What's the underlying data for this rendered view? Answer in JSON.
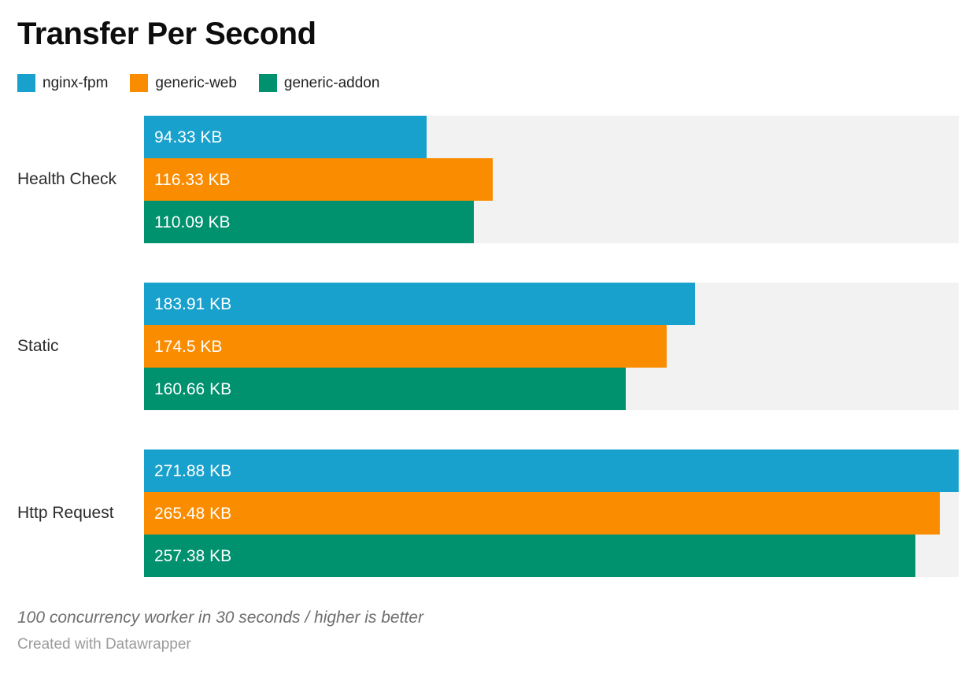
{
  "title": "Transfer Per Second",
  "legend": {
    "items": [
      {
        "label": "nginx-fpm",
        "color": "#18a1cd"
      },
      {
        "label": "generic-web",
        "color": "#fa8c00"
      },
      {
        "label": "generic-addon",
        "color": "#00916f"
      }
    ]
  },
  "chart_data": {
    "type": "bar",
    "orientation": "horizontal",
    "title": "Transfer Per Second",
    "unit": "KB",
    "categories": [
      "Health Check",
      "Static",
      "Http Request"
    ],
    "series": [
      {
        "name": "nginx-fpm",
        "color": "#18a1cd",
        "values": [
          94.33,
          183.91,
          271.88
        ],
        "display_labels": [
          "94.33 KB",
          "183.91 KB",
          "271.88 KB"
        ]
      },
      {
        "name": "generic-web",
        "color": "#fa8c00",
        "values": [
          116.33,
          174.5,
          265.48
        ],
        "display_labels": [
          "116.33 KB",
          "174.5 KB",
          "265.48 KB"
        ]
      },
      {
        "name": "generic-addon",
        "color": "#00916f",
        "values": [
          110.09,
          160.66,
          257.38
        ],
        "display_labels": [
          "110.09 KB",
          "160.66 KB",
          "257.38 KB"
        ]
      }
    ],
    "xmax": 271.88,
    "track_color": "#f2f2f2",
    "value_label_color": "#ffffff",
    "legend_position": "top",
    "grid": false,
    "xlabel": "",
    "ylabel": ""
  },
  "footer": {
    "note": "100 concurrency worker in 30 seconds / higher is better",
    "attribution": "Created with Datawrapper"
  }
}
